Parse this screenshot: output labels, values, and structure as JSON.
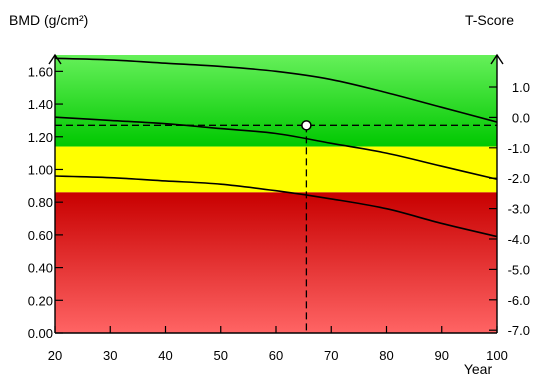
{
  "chart_data": {
    "type": "line",
    "left_axis_title": "BMD (g/cm²)",
    "right_axis_title": "T-Score",
    "x_axis_title": "Year",
    "x_ticks": [
      "20",
      "30",
      "40",
      "50",
      "60",
      "70",
      "80",
      "90",
      "100"
    ],
    "x_range": [
      20,
      100
    ],
    "y_left_ticks": [
      "0.00",
      "0.20",
      "0.40",
      "0.60",
      "0.80",
      "1.00",
      "1.20",
      "1.40",
      "1.60"
    ],
    "y_left_range": [
      0,
      1.7
    ],
    "y_right_ticks": [
      "1.0",
      "0.0",
      "-1.0",
      "-2.0",
      "-3.0",
      "-4.0",
      "-5.0",
      "-6.0",
      "-7.0"
    ],
    "zones": [
      {
        "from": 1.14,
        "to": 1.7,
        "color_top": "#66f05a",
        "color_bottom": "#00c800"
      },
      {
        "from": 0.86,
        "to": 1.14,
        "color_top": "#ffff00",
        "color_bottom": "#ffff00"
      },
      {
        "from": 0.0,
        "to": 0.86,
        "color_top": "#c80000",
        "color_bottom": "#ff6464"
      }
    ],
    "series": [
      {
        "x": [
          20,
          30,
          40,
          50,
          60,
          70,
          80,
          90,
          100
        ],
        "y": [
          1.68,
          1.67,
          1.65,
          1.63,
          1.6,
          1.55,
          1.47,
          1.38,
          1.29
        ]
      },
      {
        "x": [
          20,
          30,
          40,
          50,
          60,
          70,
          80,
          90,
          100
        ],
        "y": [
          1.32,
          1.3,
          1.28,
          1.25,
          1.22,
          1.16,
          1.1,
          1.02,
          0.94
        ]
      },
      {
        "x": [
          20,
          30,
          40,
          50,
          60,
          70,
          80,
          90,
          100
        ],
        "y": [
          0.96,
          0.95,
          0.93,
          0.91,
          0.87,
          0.82,
          0.76,
          0.67,
          0.59
        ]
      }
    ],
    "patient_point": {
      "x": 65.5,
      "y": 1.27
    },
    "grid": false,
    "legend": "none"
  }
}
